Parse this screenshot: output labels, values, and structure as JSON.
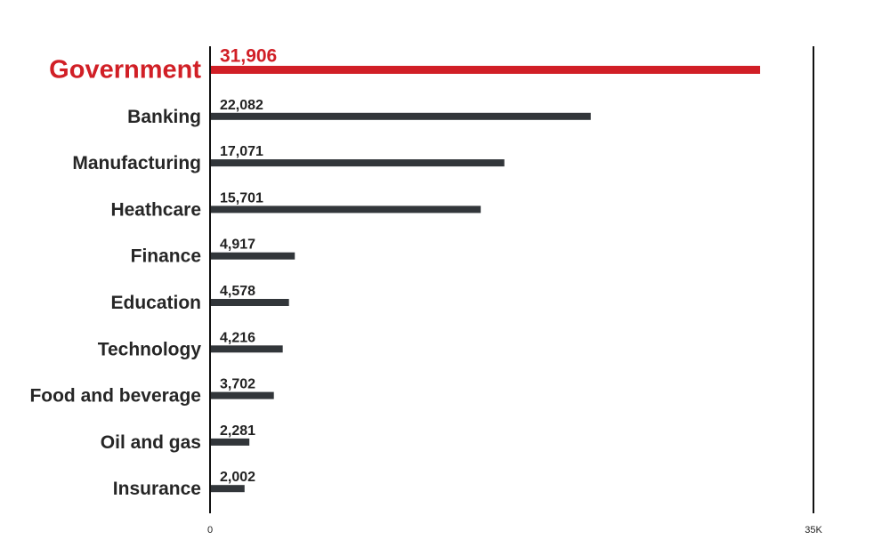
{
  "chart_data": {
    "type": "bar",
    "orientation": "horizontal",
    "categories": [
      "Government",
      "Banking",
      "Manufacturing",
      "Heathcare",
      "Finance",
      "Education",
      "Technology",
      "Food and beverage",
      "Oil and gas",
      "Insurance"
    ],
    "values": [
      31906,
      22082,
      17071,
      15701,
      4917,
      4578,
      4216,
      3702,
      2281,
      2002
    ],
    "value_labels": [
      "31,906",
      "22,082",
      "17,071",
      "15,701",
      "4,917",
      "4,578",
      "4,216",
      "3,702",
      "2,281",
      "2,002"
    ],
    "highlight_category": "Government",
    "xlim": [
      0,
      35000
    ],
    "x_tick_labels": [
      "0",
      "35K"
    ],
    "grid": false,
    "colors": {
      "highlight": "#d11f26",
      "bar": "#32363a",
      "axis": "#111111",
      "text": "#262626"
    }
  }
}
